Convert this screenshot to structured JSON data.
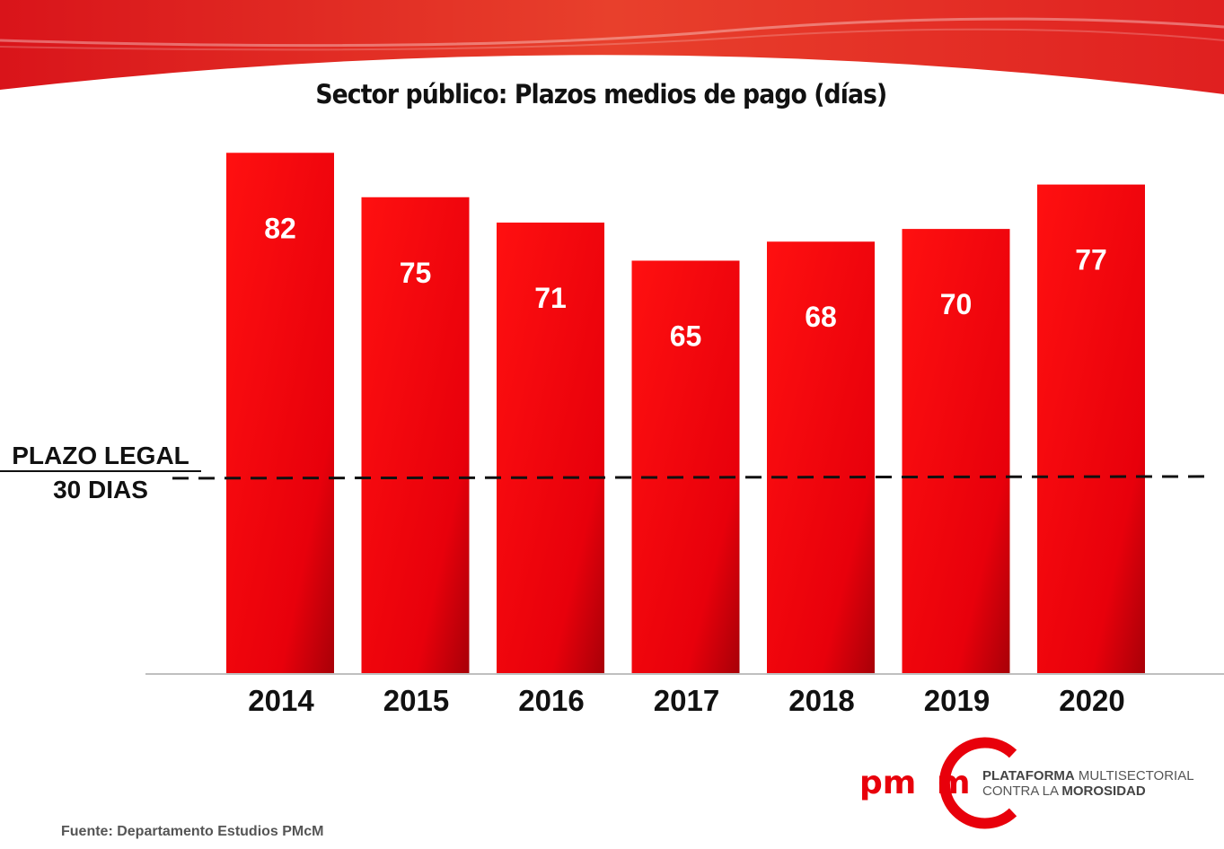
{
  "chart_data": {
    "type": "bar",
    "title": "Sector público: Plazos medios de pago (días)",
    "categories": [
      "2014",
      "2015",
      "2016",
      "2017",
      "2018",
      "2019",
      "2020"
    ],
    "values": [
      82,
      75,
      71,
      65,
      68,
      70,
      77
    ],
    "xlabel": "",
    "ylabel": "",
    "ylim": [
      0,
      86
    ],
    "grid": false,
    "reference_line": {
      "value": 30,
      "label_line1": "PLAZO LEGAL",
      "label_line2": "30 DIAS",
      "style": "dashed"
    },
    "bar_color": "#e8000b",
    "label_color": "#ffffff"
  },
  "footer": {
    "source": "Fuente: Departamento Estudios PMcM",
    "logo": {
      "mark": "pmcm",
      "bold1": "PLATAFORMA",
      "rest1": " MULTISECTORIAL",
      "rest2": "CONTRA LA ",
      "bold2": "MOROSIDAD"
    }
  },
  "colors": {
    "header": "#e0201c",
    "accent": "#e8000b"
  }
}
